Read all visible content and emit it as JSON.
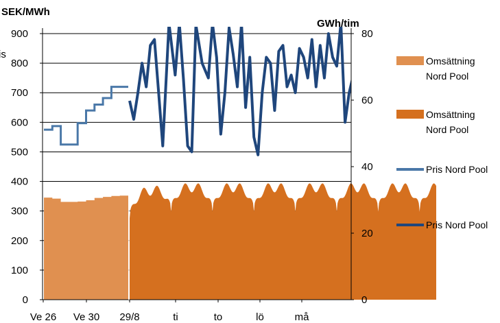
{
  "chart_data": {
    "type": "line",
    "y_left_unit": "SEK/MWh",
    "y_right_unit": "GWh/tim",
    "stray_label": "ris",
    "ylim_left": [
      0,
      900
    ],
    "ylim_right": [
      0,
      80
    ],
    "yticks_left": [
      "0",
      "100",
      "200",
      "300",
      "400",
      "500",
      "600",
      "700",
      "800",
      "900"
    ],
    "yticks_right": [
      "0",
      "20",
      "40",
      "60",
      "80"
    ],
    "x_tick_labels": [
      "Ve 26",
      "Ve 30",
      "29/8",
      "ti",
      "to",
      "lö",
      "må"
    ],
    "grid": true,
    "legend_position": "right",
    "colors": {
      "weekly_volume": "#e09050",
      "hourly_volume": "#d5701f",
      "weekly_price": "#4a78a8",
      "hourly_price": "#1f467c",
      "grid": "#000000"
    },
    "series": [
      {
        "name": "Omsättning Nord Pool",
        "name_lines": [
          "Omsättning",
          "Nord Pool"
        ],
        "axis": "right",
        "kind": "area",
        "period": "weekly",
        "x": [
          26,
          27,
          28,
          29,
          30,
          31,
          32,
          33,
          34,
          35
        ],
        "values": [
          30.7,
          30.4,
          29.4,
          29.4,
          29.5,
          29.9,
          30.6,
          30.9,
          31.2,
          31.3
        ]
      },
      {
        "name": "Omsättning Nord Pool",
        "name_lines": [
          "Omsättning",
          "Nord Pool"
        ],
        "axis": "right",
        "kind": "area",
        "period": "hourly",
        "x_range_days": [
          0,
          7.4
        ],
        "daily_profile": {
          "night_low": 26.5,
          "day_high": 35.5,
          "first_day_offset": -2.0
        }
      },
      {
        "name": "Pris Nord Pool",
        "axis": "left",
        "kind": "line",
        "period": "weekly",
        "x": [
          26,
          27,
          28,
          29,
          30,
          31,
          32,
          33,
          34,
          35
        ],
        "values": [
          575,
          587,
          525,
          525,
          597,
          640,
          660,
          682,
          720,
          720
        ]
      },
      {
        "name": "Pris Nord Pool",
        "axis": "left",
        "kind": "line",
        "period": "hourly",
        "x_days": [
          0.0,
          0.1,
          0.2,
          0.3,
          0.4,
          0.5,
          0.6,
          0.7,
          0.8,
          0.95,
          1.1,
          1.2,
          1.3,
          1.4,
          1.5,
          1.6,
          1.75,
          1.9,
          2.0,
          2.1,
          2.2,
          2.3,
          2.4,
          2.5,
          2.6,
          2.7,
          2.8,
          2.9,
          3.0,
          3.1,
          3.2,
          3.3,
          3.4,
          3.5,
          3.6,
          3.7,
          3.8,
          3.9,
          4.0,
          4.1,
          4.2,
          4.3,
          4.4,
          4.5,
          4.6,
          4.7,
          4.8,
          4.9,
          5.0,
          5.1,
          5.2,
          5.3,
          5.4,
          5.5,
          5.6,
          5.7,
          5.8,
          5.9,
          6.0,
          6.1,
          6.2,
          6.3,
          6.4,
          6.5,
          6.6,
          6.7,
          6.8,
          6.9,
          7.0,
          7.1,
          7.2,
          7.3,
          7.4
        ],
        "values": [
          673,
          610,
          700,
          800,
          720,
          860,
          880,
          700,
          520,
          935,
          760,
          935,
          745,
          520,
          500,
          930,
          800,
          750,
          935,
          820,
          560,
          700,
          920,
          830,
          720,
          935,
          650,
          820,
          550,
          490,
          700,
          820,
          800,
          640,
          840,
          860,
          720,
          760,
          700,
          850,
          820,
          750,
          880,
          720,
          860,
          750,
          900,
          820,
          790,
          935,
          600,
          700,
          760,
          710,
          935,
          880,
          750,
          935,
          800,
          720,
          935,
          660,
          860,
          935,
          790,
          800,
          790,
          800,
          780,
          800,
          760,
          750,
          545
        ]
      }
    ]
  }
}
